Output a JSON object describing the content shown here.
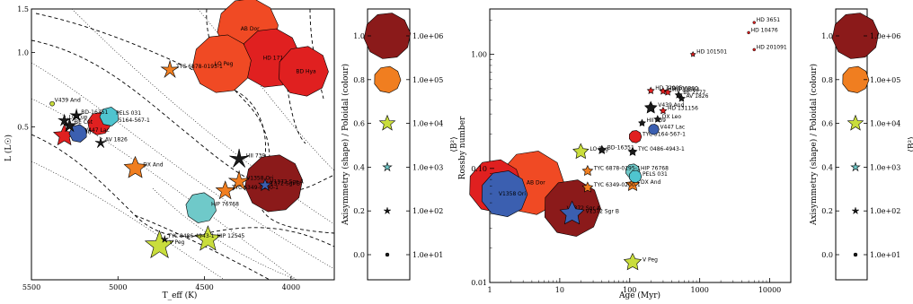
{
  "chart_data": [
    {
      "type": "scatter",
      "panel": "hr-diagram",
      "xlabel": "T_eff (K)",
      "ylabel": "L (L☉)",
      "xlim": [
        5500,
        3750
      ],
      "ylim": [
        0.12,
        1.5
      ],
      "yscale": "log",
      "xticks": [
        5500,
        5000,
        4500,
        4000
      ],
      "yticks": [
        0.5,
        1.0,
        1.5
      ],
      "xticklabels": [
        "5500",
        "5000",
        "4500",
        "4000"
      ],
      "yticklabels": [
        "0.5",
        "1.0",
        "1.5"
      ],
      "points": [
        {
          "label": "V439 And",
          "x": 5380,
          "y": 0.62,
          "b2": 15,
          "asym": 0.0,
          "color": "#c9dd3c",
          "shape": "circle"
        },
        {
          "label": "LQ Lup",
          "x": 5310,
          "y": 0.53,
          "b2": 80,
          "asym": 0.3,
          "color": "#1a1a1a",
          "shape": "star"
        },
        {
          "label": "BD-16351",
          "x": 5240,
          "y": 0.555,
          "b2": 90,
          "asym": 0.25,
          "color": "#1a1a1a",
          "shape": "star"
        },
        {
          "label": "BE Cet",
          "x": 5280,
          "y": 0.505,
          "b2": 120,
          "asym": 0.4,
          "color": "#1a1a1a",
          "shape": "star"
        },
        {
          "label": "HII 296",
          "x": 5310,
          "y": 0.46,
          "b2": 800,
          "asym": 0.7,
          "color": "#e02020",
          "shape": "star"
        },
        {
          "label": "V447 Lac",
          "x": 5230,
          "y": 0.47,
          "b2": 300,
          "asym": 0.45,
          "color": "#3b5fb0",
          "shape": "poly"
        },
        {
          "label": "PELS 031",
          "x": 5050,
          "y": 0.55,
          "b2": 400,
          "asym": 0.4,
          "color": "#4fc4cf",
          "shape": "poly"
        },
        {
          "label": "TYC 5164-567-1",
          "x": 5110,
          "y": 0.515,
          "b2": 900,
          "asym": 0.5,
          "color": "#e02020",
          "shape": "poly"
        },
        {
          "label": "AV 1826",
          "x": 5100,
          "y": 0.43,
          "b2": 70,
          "asym": 0.1,
          "color": "#1a1a1a",
          "shape": "star"
        },
        {
          "label": "TYC 6878-0195-1",
          "x": 4700,
          "y": 0.85,
          "b2": 300,
          "asym": 0.3,
          "color": "#f07e20",
          "shape": "star"
        },
        {
          "label": "AB Dor",
          "x": 4250,
          "y": 1.25,
          "b2": 4000000,
          "asym": 0.95,
          "color": "#f04a24",
          "shape": "poly"
        },
        {
          "label": "LO Peg",
          "x": 4400,
          "y": 0.9,
          "b2": 2500000,
          "asym": 0.9,
          "color": "#f04a24",
          "shape": "poly"
        },
        {
          "label": "HD 171488",
          "x": 4120,
          "y": 0.95,
          "b2": 3000000,
          "asym": 0.95,
          "color": "#e02020",
          "shape": "poly"
        },
        {
          "label": "BD Hya",
          "x": 3930,
          "y": 0.84,
          "b2": 400000,
          "asym": 0.85,
          "color": "#e02020",
          "shape": "poly"
        },
        {
          "label": "DX And",
          "x": 4900,
          "y": 0.34,
          "b2": 900,
          "asym": 0.7,
          "color": "#f07e20",
          "shape": "star"
        },
        {
          "label": "HII 739",
          "x": 4300,
          "y": 0.37,
          "b2": 500,
          "asym": 0.1,
          "color": "#1a1a1a",
          "shape": "star"
        },
        {
          "label": "V1358 Ori",
          "x": 4300,
          "y": 0.3,
          "b2": 600,
          "asym": 0.3,
          "color": "#f07e20",
          "shape": "star"
        },
        {
          "label": "TYC 6349-0200-1",
          "x": 4380,
          "y": 0.275,
          "b2": 400,
          "asym": 0.55,
          "color": "#f07e20",
          "shape": "star"
        },
        {
          "label": "HIP 76768",
          "x": 4520,
          "y": 0.235,
          "b2": 5000,
          "asym": 0.5,
          "color": "#6fc9c9",
          "shape": "poly"
        },
        {
          "label": "V1372 Sgr A",
          "x": 4150,
          "y": 0.29,
          "b2": 100,
          "asym": 0.0,
          "color": "#3b5fb0",
          "shape": "star"
        },
        {
          "label": "V1372 Sgr B",
          "x": 4100,
          "y": 0.295,
          "b2": 2000000,
          "asym": 1.0,
          "color": "#8b1a1a",
          "shape": "poly"
        },
        {
          "label": "TYC 0486-4943-1",
          "x": 4730,
          "y": 0.175,
          "b2": 30,
          "asym": 0.05,
          "color": "#1a1a1a",
          "shape": "star"
        },
        {
          "label": "HIP 12545",
          "x": 4480,
          "y": 0.175,
          "b2": 2000,
          "asym": 0.6,
          "color": "#c9dd3c",
          "shape": "star"
        },
        {
          "label": "V Peg",
          "x": 4760,
          "y": 0.165,
          "b2": 4000,
          "asym": 0.55,
          "color": "#c9dd3c",
          "shape": "star"
        }
      ]
    },
    {
      "type": "scatter",
      "panel": "rossby-age",
      "xlabel": "Age (Myr)",
      "ylabel": "Rossby number",
      "xscale": "log",
      "yscale": "log",
      "xlim": [
        1,
        20000
      ],
      "ylim": [
        0.01,
        2.5
      ],
      "xticklabels": [
        "1",
        "10",
        "100",
        "1000",
        "10000"
      ],
      "yticklabels": [
        "0.01",
        "0.10",
        "1.00"
      ],
      "points": [
        {
          "label": "HD 3651",
          "x": 6000,
          "y": 1.9,
          "color": "#e02020",
          "shape": "dot"
        },
        {
          "label": "HD 10476",
          "x": 5000,
          "y": 1.55,
          "color": "#e02020",
          "shape": "dot"
        },
        {
          "label": "HD 201091",
          "x": 6000,
          "y": 1.1,
          "color": "#e02020",
          "shape": "dot"
        },
        {
          "label": "HD 101501",
          "x": 800,
          "y": 1.0,
          "color": "#e02020",
          "shape": "star"
        },
        {
          "label": "HD 72905",
          "x": 200,
          "y": 0.48,
          "color": "#e02020",
          "shape": "star"
        },
        {
          "label": "HD 206860",
          "x": 300,
          "y": 0.475,
          "color": "#e02020",
          "shape": "star"
        },
        {
          "label": "HD 33564",
          "x": 350,
          "y": 0.465,
          "color": "#e02020",
          "shape": "star"
        },
        {
          "label": "BE 2177",
          "x": 500,
          "y": 0.44,
          "color": "#1a1a1a",
          "shape": "star"
        },
        {
          "label": "AV 1826",
          "x": 550,
          "y": 0.41,
          "color": "#1a1a1a",
          "shape": "star"
        },
        {
          "label": "V439 And",
          "x": 200,
          "y": 0.34,
          "color": "#1a1a1a",
          "shape": "star"
        },
        {
          "label": "HD 131156",
          "x": 300,
          "y": 0.32,
          "color": "#e02020",
          "shape": "star"
        },
        {
          "label": "HII 739",
          "x": 150,
          "y": 0.25,
          "color": "#1a1a1a",
          "shape": "star"
        },
        {
          "label": "DX Leo",
          "x": 250,
          "y": 0.27,
          "color": "#1a1a1a",
          "shape": "star"
        },
        {
          "label": "V447 Lac",
          "x": 220,
          "y": 0.22,
          "color": "#3b5fb0",
          "shape": "poly"
        },
        {
          "label": "TYC 5164-567-1",
          "x": 120,
          "y": 0.19,
          "color": "#e02020",
          "shape": "poly"
        },
        {
          "label": "BD-16351",
          "x": 40,
          "y": 0.145,
          "color": "#1a1a1a",
          "shape": "star"
        },
        {
          "label": "LO Peg",
          "x": 20,
          "y": 0.14,
          "color": "#c9dd3c",
          "shape": "star"
        },
        {
          "label": "TYC 0486-4943-1",
          "x": 110,
          "y": 0.14,
          "color": "#1a1a1a",
          "shape": "star"
        },
        {
          "label": "TYC 6878-0195-1",
          "x": 25,
          "y": 0.095,
          "color": "#f07e20",
          "shape": "star"
        },
        {
          "label": "HIP 76768",
          "x": 110,
          "y": 0.095,
          "color": "#6fc9c9",
          "shape": "poly"
        },
        {
          "label": "PELS 031",
          "x": 120,
          "y": 0.085,
          "color": "#4fc4cf",
          "shape": "poly"
        },
        {
          "label": "DX And",
          "x": 110,
          "y": 0.072,
          "color": "#f07e20",
          "shape": "star"
        },
        {
          "label": "TYC 6349-0200-1",
          "x": 25,
          "y": 0.068,
          "color": "#f07e20",
          "shape": "star"
        },
        {
          "label": "HD 171488",
          "x": 1.2,
          "y": 0.07,
          "color": "#e02020",
          "shape": "poly"
        },
        {
          "label": "AB Dor",
          "x": 4,
          "y": 0.075,
          "color": "#f04a24",
          "shape": "poly"
        },
        {
          "label": "V1358 Ori",
          "x": 1.6,
          "y": 0.06,
          "color": "#3b5fb0",
          "shape": "poly"
        },
        {
          "label": "V1372 Sgr A",
          "x": 15,
          "y": 0.045,
          "color": "#8b1a1a",
          "shape": "poly"
        },
        {
          "label": "V1372 Sgr B",
          "x": 15,
          "y": 0.04,
          "color": "#3b5fb0",
          "shape": "star"
        },
        {
          "label": "V Peg",
          "x": 110,
          "y": 0.015,
          "color": "#c9dd3c",
          "shape": "star"
        }
      ]
    }
  ],
  "legend": {
    "ylabel": "Axisymmetry (shape) / Poloidal (colour)",
    "rlabel": "⟨B²⟩",
    "yticks": [
      "0.0",
      "0.2",
      "0.4",
      "0.6",
      "0.8",
      "1.0"
    ],
    "entries": [
      {
        "asym": 1.0,
        "value": "1.0e+06",
        "color": "#8b1a1a",
        "shape": "poly"
      },
      {
        "asym": 0.8,
        "value": "1.0e+05",
        "color": "#f07e20",
        "shape": "poly"
      },
      {
        "asym": 0.6,
        "value": "1.0e+04",
        "color": "#c9dd3c",
        "shape": "star"
      },
      {
        "asym": 0.4,
        "value": "1.0e+03",
        "color": "#6fc9c9",
        "shape": "star"
      },
      {
        "asym": 0.2,
        "value": "1.0e+02",
        "color": "#1a1a1a",
        "shape": "star"
      },
      {
        "asym": 0.0,
        "value": "1.0e+01",
        "color": "#1a1a1a",
        "shape": "dot"
      }
    ]
  }
}
